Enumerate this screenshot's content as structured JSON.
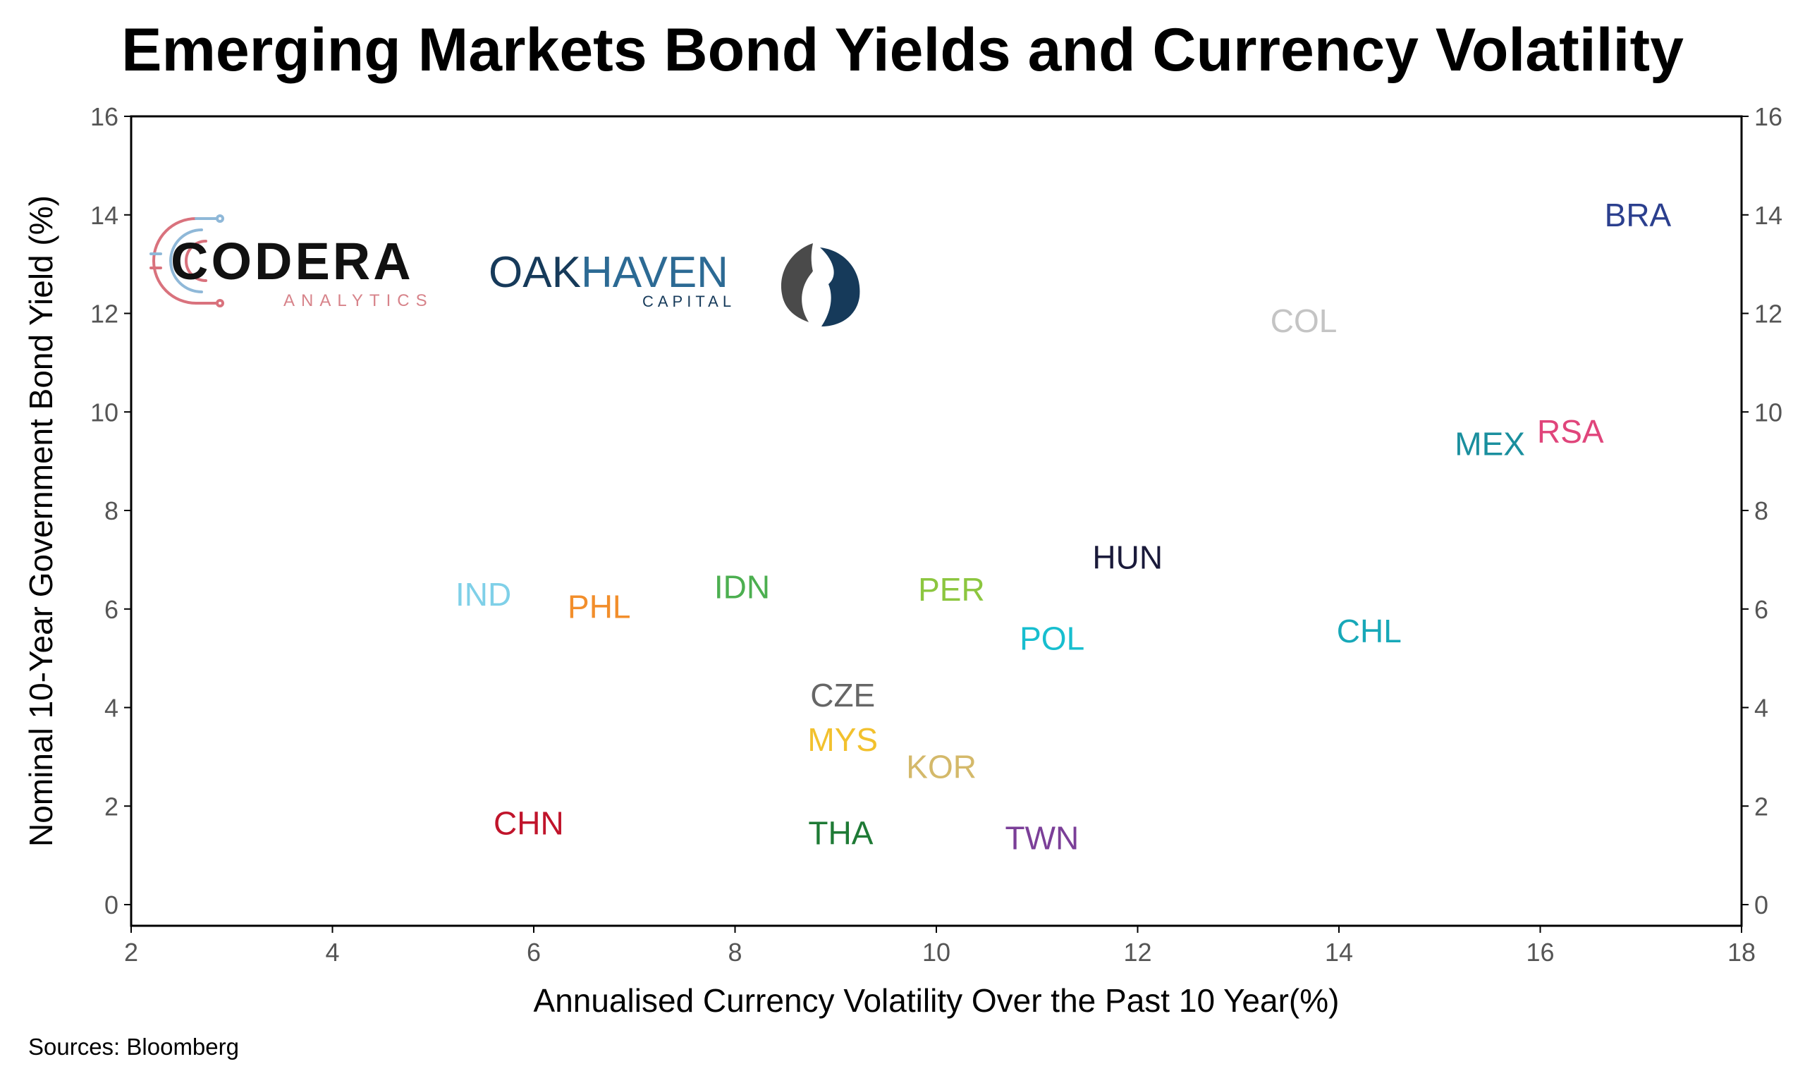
{
  "chart_data": {
    "type": "scatter",
    "title": "Emerging Markets Bond Yields and Currency Volatility",
    "xlabel": "Annualised Currency Volatility Over the Past 10 Year(%)",
    "ylabel": "Nominal 10-Year Government Bond Yield (%)",
    "xlim": [
      2,
      18
    ],
    "ylim": [
      0,
      16
    ],
    "xticks": [
      2,
      4,
      6,
      8,
      10,
      12,
      14,
      16,
      18
    ],
    "yticks": [
      0,
      2,
      4,
      6,
      8,
      10,
      12,
      14,
      16
    ],
    "grid": false,
    "secondary_y_axis": true,
    "points": [
      {
        "label": "BRA",
        "x": 16.97,
        "y": 14.0,
        "color": "#2b3f8e"
      },
      {
        "label": "COL",
        "x": 13.65,
        "y": 11.85,
        "color": "#c4c4c4"
      },
      {
        "label": "RSA",
        "x": 16.3,
        "y": 9.6,
        "color": "#e0457b"
      },
      {
        "label": "MEX",
        "x": 15.5,
        "y": 9.35,
        "color": "#1a8f9e"
      },
      {
        "label": "HUN",
        "x": 11.9,
        "y": 7.05,
        "color": "#1a1a3a"
      },
      {
        "label": "IND",
        "x": 5.5,
        "y": 6.3,
        "color": "#7fd0e8"
      },
      {
        "label": "PHL",
        "x": 6.65,
        "y": 6.05,
        "color": "#f28e2b"
      },
      {
        "label": "IDN",
        "x": 8.07,
        "y": 6.45,
        "color": "#4caf50"
      },
      {
        "label": "PER",
        "x": 10.15,
        "y": 6.4,
        "color": "#8cc63f"
      },
      {
        "label": "POL",
        "x": 11.15,
        "y": 5.4,
        "color": "#17becf"
      },
      {
        "label": "CHL",
        "x": 14.3,
        "y": 5.55,
        "color": "#17a8b8"
      },
      {
        "label": "CZE",
        "x": 9.07,
        "y": 4.25,
        "color": "#666666"
      },
      {
        "label": "MYS",
        "x": 9.07,
        "y": 3.35,
        "color": "#f2c12e"
      },
      {
        "label": "KOR",
        "x": 10.05,
        "y": 2.8,
        "color": "#d4b96a"
      },
      {
        "label": "CHN",
        "x": 5.95,
        "y": 1.65,
        "color": "#c0142b"
      },
      {
        "label": "THA",
        "x": 9.05,
        "y": 1.45,
        "color": "#1e7a35"
      },
      {
        "label": "TWN",
        "x": 11.05,
        "y": 1.35,
        "color": "#7b3f98"
      }
    ]
  },
  "logos": {
    "codera": {
      "name": "CODERA",
      "sub": "ANALYTICS"
    },
    "oakhaven": {
      "name_a": "OAK",
      "name_b": "HAVEN",
      "sub": "CAPITAL"
    }
  },
  "source_note": "Sources: Bloomberg"
}
